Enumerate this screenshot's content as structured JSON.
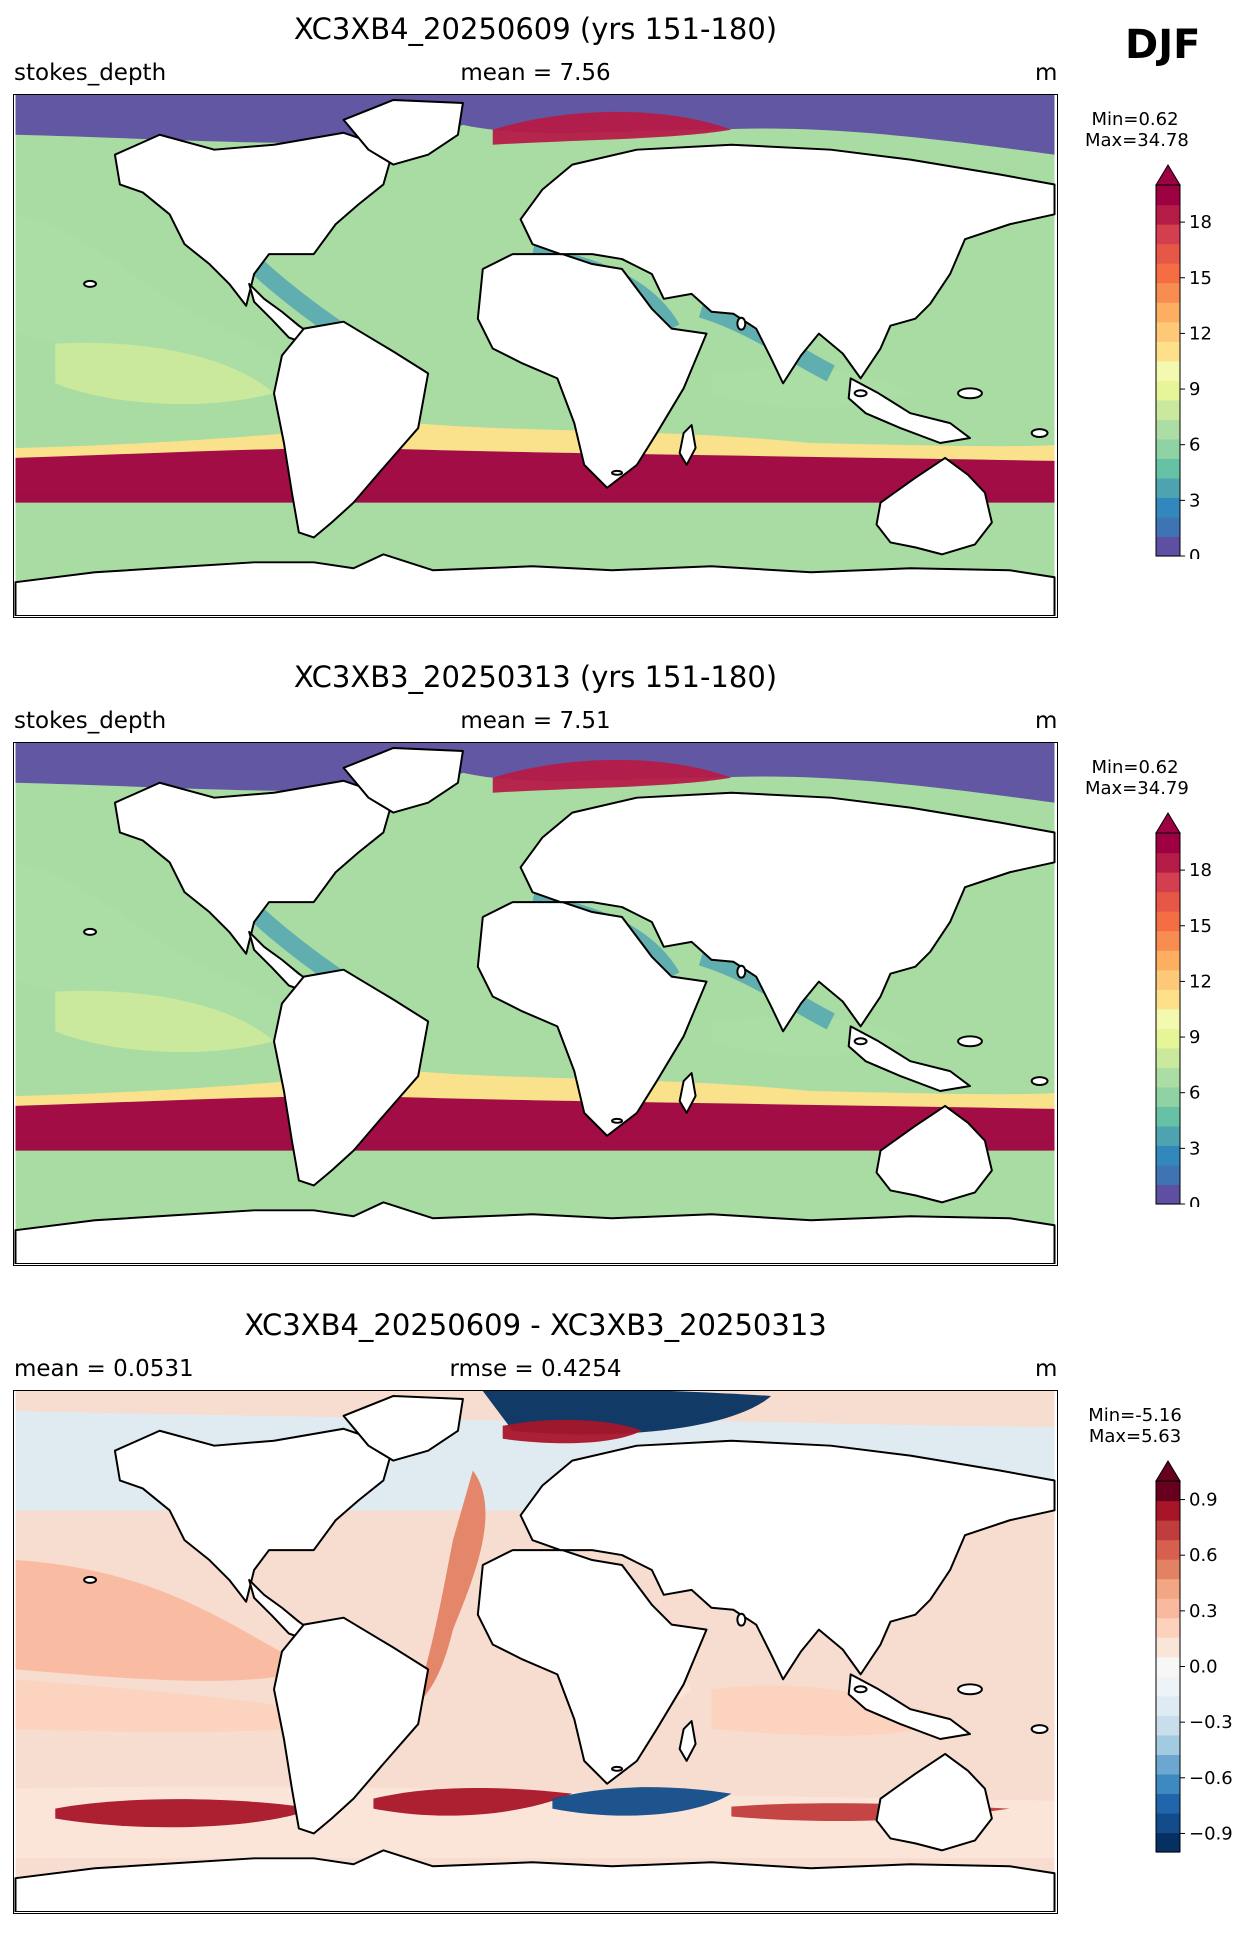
{
  "season": "DJF",
  "panels": [
    {
      "title": "XC3XB4_20250609 (yrs 151-180)",
      "left_label": "stokes_depth",
      "center_label": "mean = 7.56",
      "right_label": "m",
      "colorbar": {
        "min_label": "Min=0.62",
        "max_label": "Max=34.78",
        "ticks": [
          "0",
          "3",
          "6",
          "9",
          "12",
          "15",
          "18"
        ],
        "range": [
          0,
          20
        ],
        "colors": [
          "#5e4fa2",
          "#3e74b3",
          "#3288bd",
          "#4ea3b1",
          "#66c2a5",
          "#8fd2a4",
          "#abdda4",
          "#cbe99d",
          "#e6f598",
          "#f4f9b0",
          "#fee08b",
          "#fdc877",
          "#fdae61",
          "#f88d52",
          "#f46d43",
          "#e65747",
          "#d53e4f",
          "#b61b48",
          "#9e0142"
        ]
      }
    },
    {
      "title": "XC3XB3_20250313 (yrs 151-180)",
      "left_label": "stokes_depth",
      "center_label": "mean = 7.51",
      "right_label": "m",
      "colorbar": {
        "min_label": "Min=0.62",
        "max_label": "Max=34.79",
        "ticks": [
          "0",
          "3",
          "6",
          "9",
          "12",
          "15",
          "18"
        ],
        "range": [
          0,
          20
        ],
        "colors": [
          "#5e4fa2",
          "#3e74b3",
          "#3288bd",
          "#4ea3b1",
          "#66c2a5",
          "#8fd2a4",
          "#abdda4",
          "#cbe99d",
          "#e6f598",
          "#f4f9b0",
          "#fee08b",
          "#fdc877",
          "#fdae61",
          "#f88d52",
          "#f46d43",
          "#e65747",
          "#d53e4f",
          "#b61b48",
          "#9e0142"
        ]
      }
    },
    {
      "title": "XC3XB4_20250609 - XC3XB3_20250313",
      "left_label": "mean = 0.0531",
      "center_label": "rmse = 0.4254",
      "right_label": "m",
      "colorbar": {
        "min_label": "Min=-5.16",
        "max_label": "Max=5.63",
        "ticks": [
          "−0.9",
          "−0.6",
          "−0.3",
          "0.0",
          "0.3",
          "0.6",
          "0.9"
        ],
        "range": [
          -1.0,
          1.0
        ],
        "colors": [
          "#053061",
          "#124c8a",
          "#2166ac",
          "#3d89c0",
          "#6ba7d0",
          "#a2cbe2",
          "#c8deec",
          "#deebf2",
          "#edf3f6",
          "#f7f7f7",
          "#fbe5d9",
          "#fcd2bd",
          "#f9b99f",
          "#f4a582",
          "#e38163",
          "#d6604d",
          "#c13c3c",
          "#a81529",
          "#67001f"
        ]
      }
    }
  ]
}
